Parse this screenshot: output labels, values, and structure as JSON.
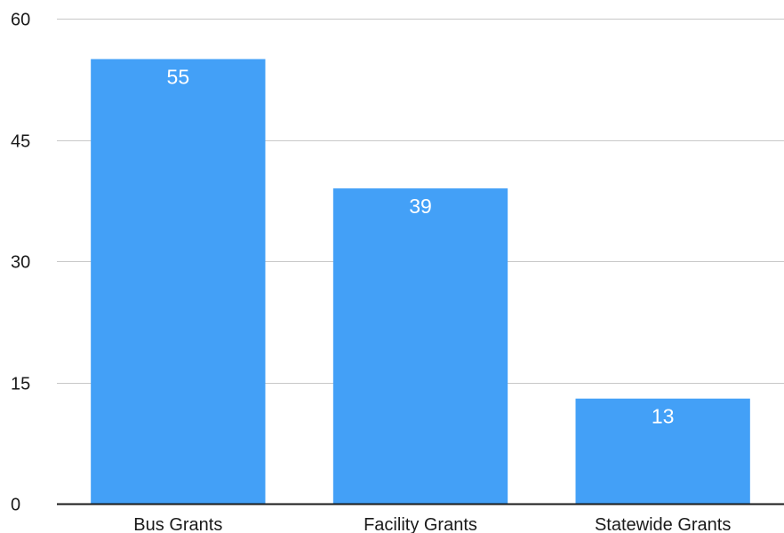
{
  "chart_data": {
    "type": "bar",
    "categories": [
      "Bus Grants",
      "Facility Grants",
      "Statewide Grants"
    ],
    "values": [
      55,
      39,
      13
    ],
    "data_labels": [
      "55",
      "39",
      "13"
    ],
    "title": "",
    "xlabel": "",
    "ylabel": "",
    "ylim": [
      0,
      60
    ],
    "yticks": [
      0,
      15,
      30,
      45,
      60
    ],
    "ytick_labels": [
      "0",
      "15",
      "30",
      "45",
      "60"
    ],
    "grid": true,
    "legend": "none",
    "bar_color": "#43a0f7"
  }
}
